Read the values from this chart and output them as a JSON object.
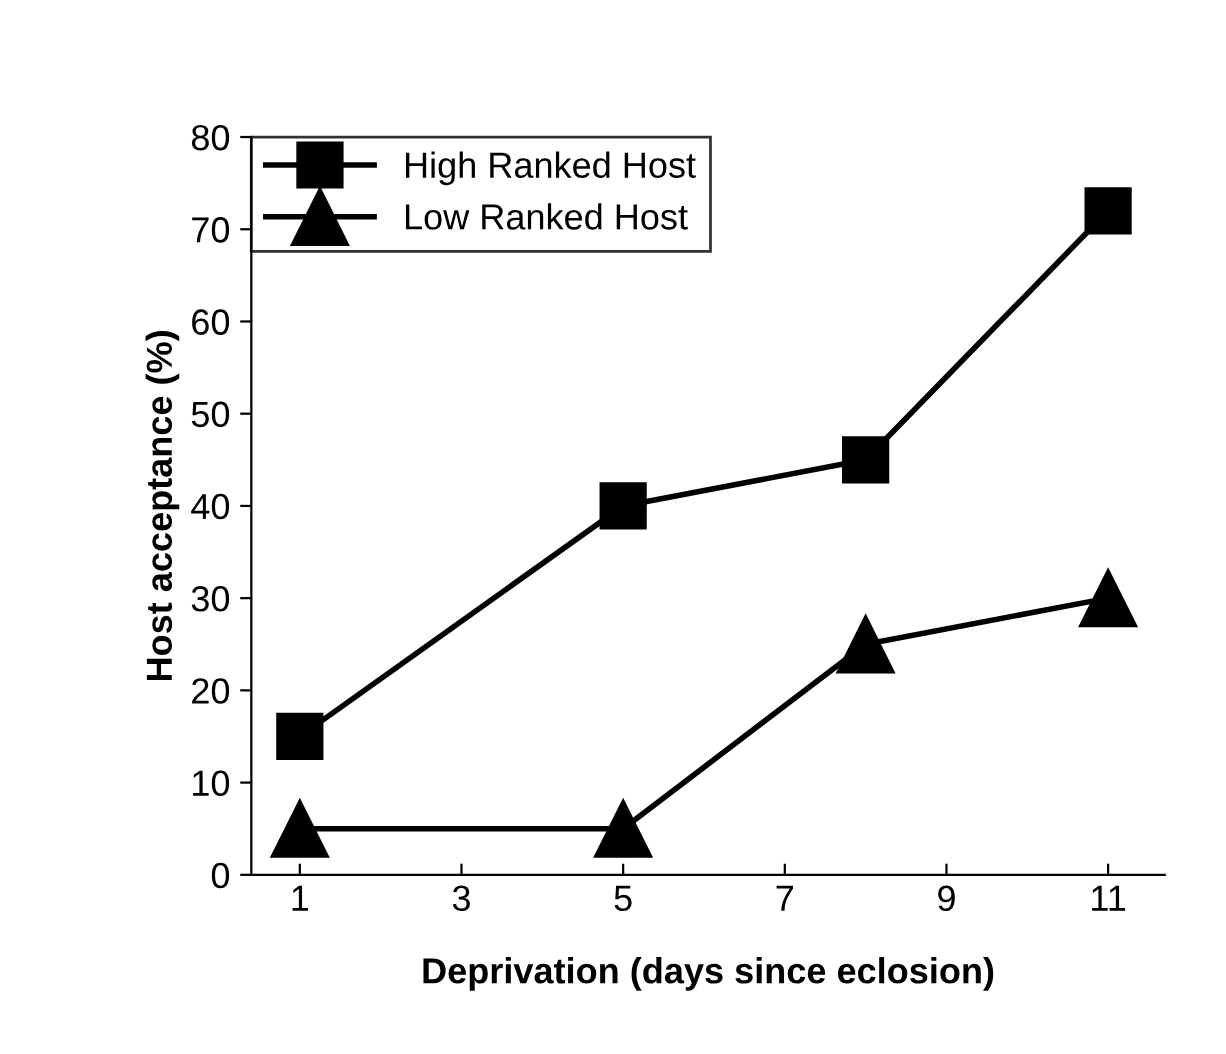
{
  "chart_data": {
    "type": "line",
    "xlabel": "Deprivation (days since eclosion)",
    "ylabel": "Host acceptance (%)",
    "x": [
      1,
      5,
      8,
      11
    ],
    "series": [
      {
        "name": "High Ranked Host",
        "color": "#000000",
        "marker": "square",
        "values": [
          15,
          40,
          45,
          72
        ]
      },
      {
        "name": "Low Ranked Host",
        "color": "#000000",
        "marker": "triangle",
        "values": [
          5,
          5,
          25,
          30
        ]
      }
    ],
    "xlim": [
      0.4,
      11.7
    ],
    "xticks": [
      1,
      3,
      5,
      7,
      9,
      11
    ],
    "ylim": [
      0,
      80
    ],
    "yticks": [
      0,
      10,
      20,
      30,
      40,
      50,
      60,
      70,
      80
    ],
    "grid": false,
    "legend": "top left",
    "line_style": "solid"
  }
}
